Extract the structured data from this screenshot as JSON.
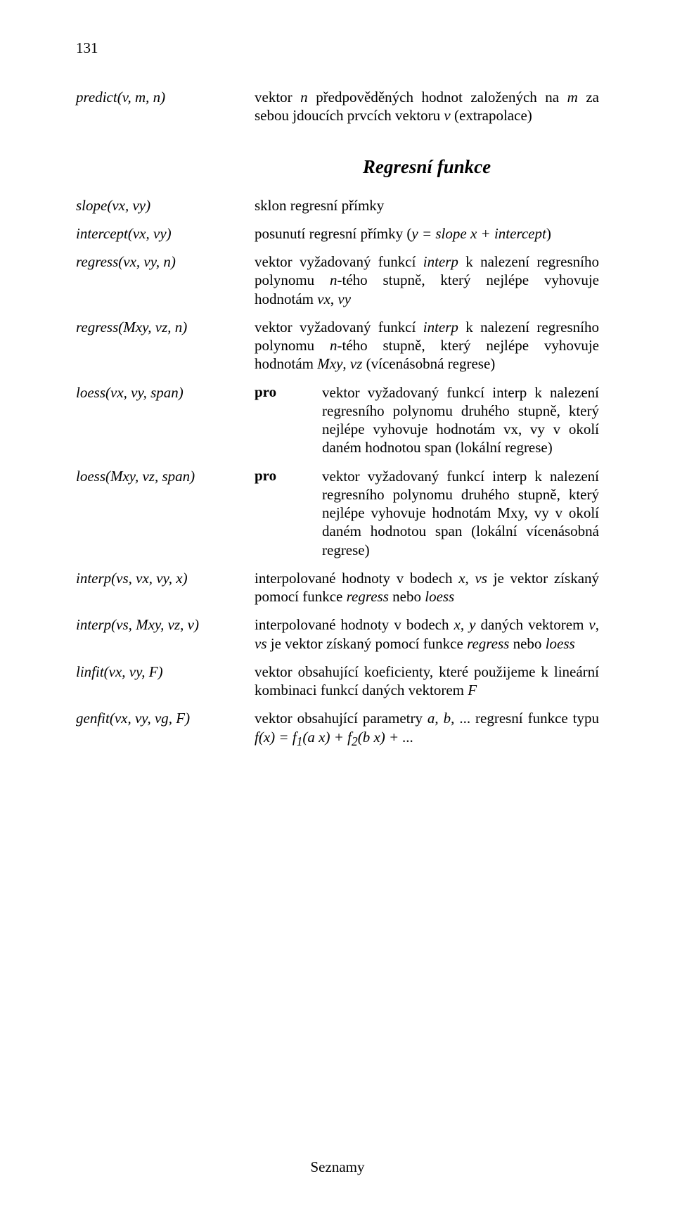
{
  "page_number": "131",
  "predict": {
    "label": "predict(v, m, n)",
    "desc_plain_1": "vektor ",
    "desc_ital_1": "n",
    "desc_plain_2": " předpověděných hodnot založených na ",
    "desc_ital_2": "m",
    "desc_plain_3": " za sebou jdoucích prvcích vektoru ",
    "desc_ital_3": "v",
    "desc_plain_4": " (extrapolace)"
  },
  "heading": "Regresní funkce",
  "slope": {
    "label": "slope(vx, vy)",
    "desc": "sklon regresní přímky"
  },
  "intercept": {
    "label": "intercept(vx, vy)",
    "p1": "posunutí regresní přímky (",
    "i1": "y = slope x + intercept",
    "p2": ")"
  },
  "regress_vx": {
    "label": "regress(vx, vy, n)",
    "p1": "vektor vyžadovaný funkcí ",
    "i1": "interp",
    "p2": " k nalezení regresního polynomu ",
    "i2": "n",
    "p3": "-tého stupně, který nejlépe vyhovuje hodnotám ",
    "i3": "vx",
    "p4": ", ",
    "i4": "vy"
  },
  "regress_mxy": {
    "label": "regress(Mxy, vz, n)",
    "p1": "vektor vyžadovaný funkcí ",
    "i1": "interp",
    "p2": " k nalezení regresního polynomu ",
    "i2": "n",
    "p3": "-tého stupně, který nejlépe vyhovuje hodnotám ",
    "i3": "Mxy",
    "p4": ", ",
    "i4": "vz",
    "p5": " (vícenásobná regrese)"
  },
  "loess_vx": {
    "label": "loess(vx, vy, span)",
    "pro": "pro",
    "p1": "vektor vyžadovaný funkcí ",
    "i1": "interp",
    "p2": " k nalezení regresního polynomu druhého stupně, který nejlépe vyhovuje hodnotám ",
    "i2": "vx",
    "p3": ", ",
    "i3": "vy",
    "p4": " v okolí daném hodnotou ",
    "i4": "span",
    "p5": " (lokální regrese)"
  },
  "loess_mxy": {
    "label": "loess(Mxy, vz, span)",
    "pro": "pro",
    "p1": "vektor vyžadovaný funkcí ",
    "i1": "interp",
    "p2": " k nalezení regresního polynomu druhého stupně, který nejlépe vyhovuje hodnotám ",
    "i2": "Mxy",
    "p3": ", ",
    "i3": "vy",
    "p4": " v okolí daném hodnotou ",
    "i4": "span",
    "p5": " (lokální vícenásobná regrese)"
  },
  "interp_vs_vx": {
    "label": "interp(vs, vx, vy, x)",
    "p1": "interpolované hodnoty v bodech ",
    "i1": "x",
    "p2": ", ",
    "i2": "vs",
    "p3": " je vektor získaný pomocí funkce ",
    "i3": "regress",
    "p4": " nebo ",
    "i4": "loess"
  },
  "interp_vs_mxy": {
    "label": "interp(vs, Mxy, vz, v)",
    "p1": "interpolované hodnoty v bodech ",
    "i1": "x",
    "p2": ", ",
    "i2": "y",
    "p3": " daných vektorem ",
    "i3": "v",
    "p4": ", ",
    "i4": "vs",
    "p5": " je vektor získaný pomocí funkce ",
    "i5": "regress",
    "p6": " nebo ",
    "i6": "loess"
  },
  "linfit": {
    "label": "linfit(vx, vy, F)",
    "p1": "vektor obsahující koeficienty, které použijeme k lineární kombinaci funkcí daných vektorem ",
    "i1": "F"
  },
  "genfit": {
    "label": "genfit(vx, vy, vg, F)",
    "p1": "vektor obsahující parametry ",
    "i1": "a",
    "p2": ", ",
    "i2": "b",
    "p3": ", ... regresní funkce typu ",
    "i3": "f(x) = f",
    "sub1": "1",
    "i4": "(a x) + f",
    "sub2": "2",
    "i5": "(b x) + ..."
  },
  "footer": "Seznamy"
}
